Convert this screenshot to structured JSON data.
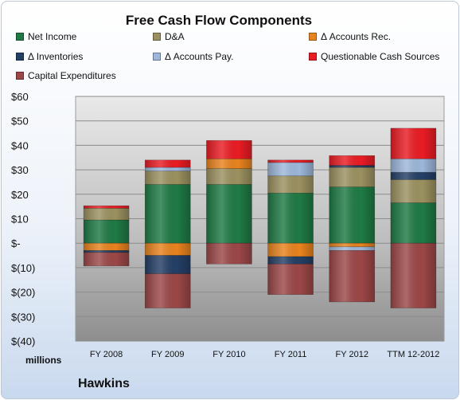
{
  "chart_data": {
    "type": "bar",
    "stacked": true,
    "title": "Free Cash Flow Components",
    "xlabel": "",
    "ylabel": "millions",
    "ylim": [
      -40,
      60
    ],
    "yticks": [
      60,
      50,
      40,
      30,
      20,
      10,
      0,
      -10,
      -20,
      -30,
      -40
    ],
    "ytick_labels": [
      "$60",
      "$50",
      "$40",
      "$30",
      "$20",
      "$10",
      "$-",
      "$(10)",
      "$(20)",
      "$(30)",
      "$(40)"
    ],
    "grid": true,
    "legend_position": "top",
    "categories": [
      "FY 2008",
      "FY 2009",
      "FY 2010",
      "FY 2011",
      "FY 2012",
      "TTM 12-2012"
    ],
    "series": [
      {
        "name": "Net Income",
        "color": "#1f7a45",
        "values": [
          9.5,
          24,
          24,
          20.5,
          23,
          16.5
        ]
      },
      {
        "name": "D&A",
        "color": "#9b9160",
        "values": [
          4.8,
          5.5,
          6.5,
          7,
          8,
          9.5
        ]
      },
      {
        "name": "Δ Accounts Rec.",
        "color": "#e8831e",
        "values": [
          -3,
          -5,
          4,
          -5.5,
          -1.5,
          0
        ]
      },
      {
        "name": "Δ Inventories",
        "color": "#243f66",
        "values": [
          -0.8,
          -7.5,
          0,
          -3,
          0.8,
          3
        ]
      },
      {
        "name": "Δ Accounts Pay.",
        "color": "#9db7da",
        "values": [
          0,
          1.5,
          0,
          5.5,
          -1.5,
          5.5
        ]
      },
      {
        "name": "Questionable Cash Sources",
        "color": "#ea1c24",
        "values": [
          1,
          3,
          7.5,
          1,
          4,
          12.5
        ]
      },
      {
        "name": "Capital Expenditures",
        "color": "#9c4747",
        "values": [
          -5.5,
          -14,
          -8.5,
          -12.5,
          -21,
          -26.5
        ]
      }
    ],
    "company": "Hawkins"
  }
}
